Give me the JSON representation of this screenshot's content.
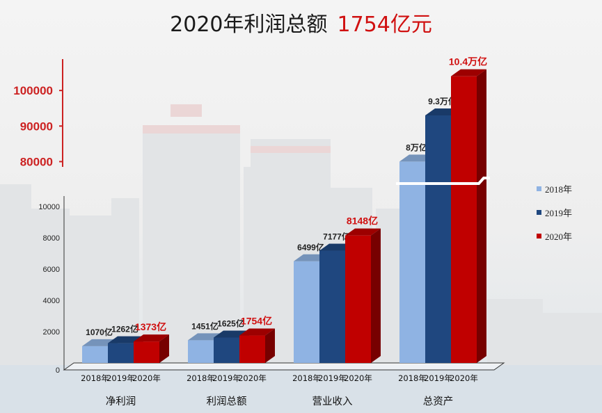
{
  "title": {
    "main": "2020年利润总额",
    "highlight": "1754亿元"
  },
  "colors": {
    "2018": "#8fb3e3",
    "2019": "#1f477f",
    "2020": "#c00000",
    "highlight": "#d01010",
    "upper_axis": "#cc2222"
  },
  "legend": [
    {
      "name": "2018年",
      "color": "#8fb3e3"
    },
    {
      "name": "2019年",
      "color": "#1f477f"
    },
    {
      "name": "2020年",
      "color": "#c00000"
    }
  ],
  "chart_data": {
    "type": "bar",
    "title": "2020年利润总额 1754亿元",
    "categories": [
      "净利润",
      "利润总额",
      "营业收入",
      "总资产"
    ],
    "sub_categories": [
      "2018年",
      "2019年",
      "2020年"
    ],
    "series": [
      {
        "name": "2018年",
        "values": [
          1070,
          1451,
          6499,
          80000
        ]
      },
      {
        "name": "2019年",
        "values": [
          1262,
          1625,
          7177,
          93000
        ]
      },
      {
        "name": "2020年",
        "values": [
          1373,
          1754,
          8148,
          104000
        ]
      }
    ],
    "data_labels": [
      [
        "1070亿",
        "1262亿",
        "1373亿"
      ],
      [
        "1451亿",
        "1625亿",
        "1754亿"
      ],
      [
        "6499亿",
        "7177亿",
        "8148亿"
      ],
      [
        "8万亿",
        "9.3万亿",
        "10.4万亿"
      ]
    ],
    "lower_axis": {
      "ticks": [
        0,
        2000,
        4000,
        6000,
        8000,
        10000
      ],
      "ylim": [
        0,
        10000
      ]
    },
    "upper_axis": {
      "ticks": [
        80000,
        90000,
        100000
      ],
      "ylim": [
        75000,
        110000
      ]
    },
    "axis_break": true,
    "legend_position": "right",
    "grid": false
  }
}
